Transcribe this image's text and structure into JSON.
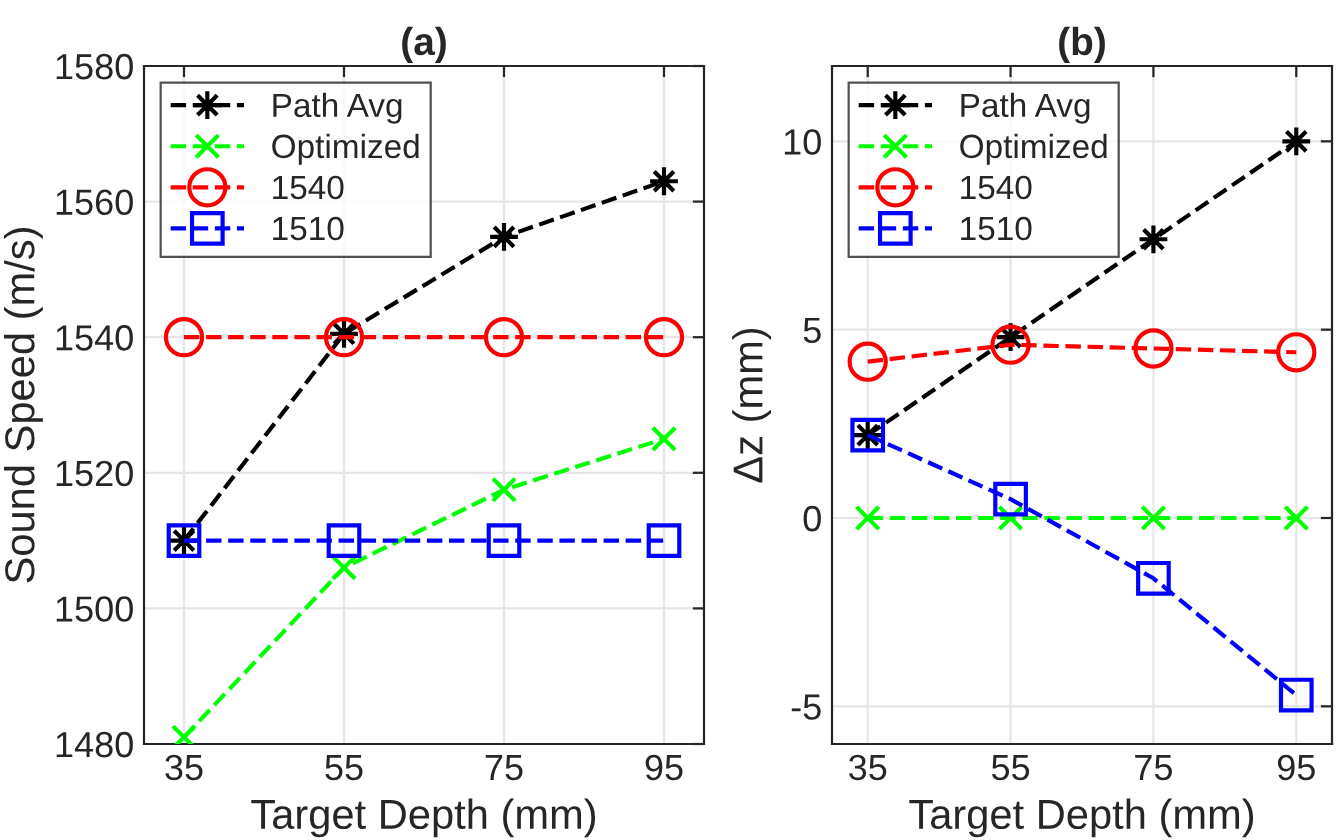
{
  "chart_data": [
    {
      "type": "line",
      "title": "(a)",
      "xlabel": "Target Depth (mm)",
      "ylabel": "Sound Speed (m/s)",
      "x": [
        35,
        55,
        75,
        95
      ],
      "xlim": [
        30,
        100
      ],
      "xticks": [
        35,
        55,
        75,
        95
      ],
      "ylim": [
        1480,
        1580
      ],
      "yticks": [
        1480,
        1500,
        1520,
        1540,
        1560,
        1580
      ],
      "grid": true,
      "legend": "top left",
      "line_style": "dashed",
      "series": [
        {
          "name": "Path Avg",
          "color": "#000000",
          "marker": "star",
          "values": [
            1510,
            1540.5,
            1554.8,
            1563
          ]
        },
        {
          "name": "Optimized",
          "color": "#00ff00",
          "marker": "cross",
          "values": [
            1481,
            1506,
            1517.5,
            1525
          ]
        },
        {
          "name": "1540",
          "color": "#ff0000",
          "marker": "circle",
          "values": [
            1540,
            1540,
            1540,
            1540
          ]
        },
        {
          "name": "1510",
          "color": "#0000ff",
          "marker": "square",
          "values": [
            1510,
            1510,
            1510,
            1510
          ]
        }
      ]
    },
    {
      "type": "line",
      "title": "(b)",
      "xlabel": "Target Depth (mm)",
      "ylabel": "Δz (mm)",
      "x": [
        35,
        55,
        75,
        95
      ],
      "xlim": [
        30,
        100
      ],
      "xticks": [
        35,
        55,
        75,
        95
      ],
      "ylim": [
        -6,
        12
      ],
      "yticks": [
        -5,
        0,
        5,
        10
      ],
      "grid": true,
      "legend": "top left",
      "line_style": "dashed",
      "series": [
        {
          "name": "Path Avg",
          "color": "#000000",
          "marker": "star",
          "values": [
            2.2,
            4.8,
            7.4,
            10.0
          ]
        },
        {
          "name": "Optimized",
          "color": "#00ff00",
          "marker": "cross",
          "values": [
            0,
            0,
            0,
            0
          ]
        },
        {
          "name": "1540",
          "color": "#ff0000",
          "marker": "circle",
          "values": [
            4.15,
            4.6,
            4.5,
            4.4
          ]
        },
        {
          "name": "1510",
          "color": "#0000ff",
          "marker": "square",
          "values": [
            2.2,
            0.5,
            -1.6,
            -4.7
          ]
        }
      ]
    }
  ]
}
